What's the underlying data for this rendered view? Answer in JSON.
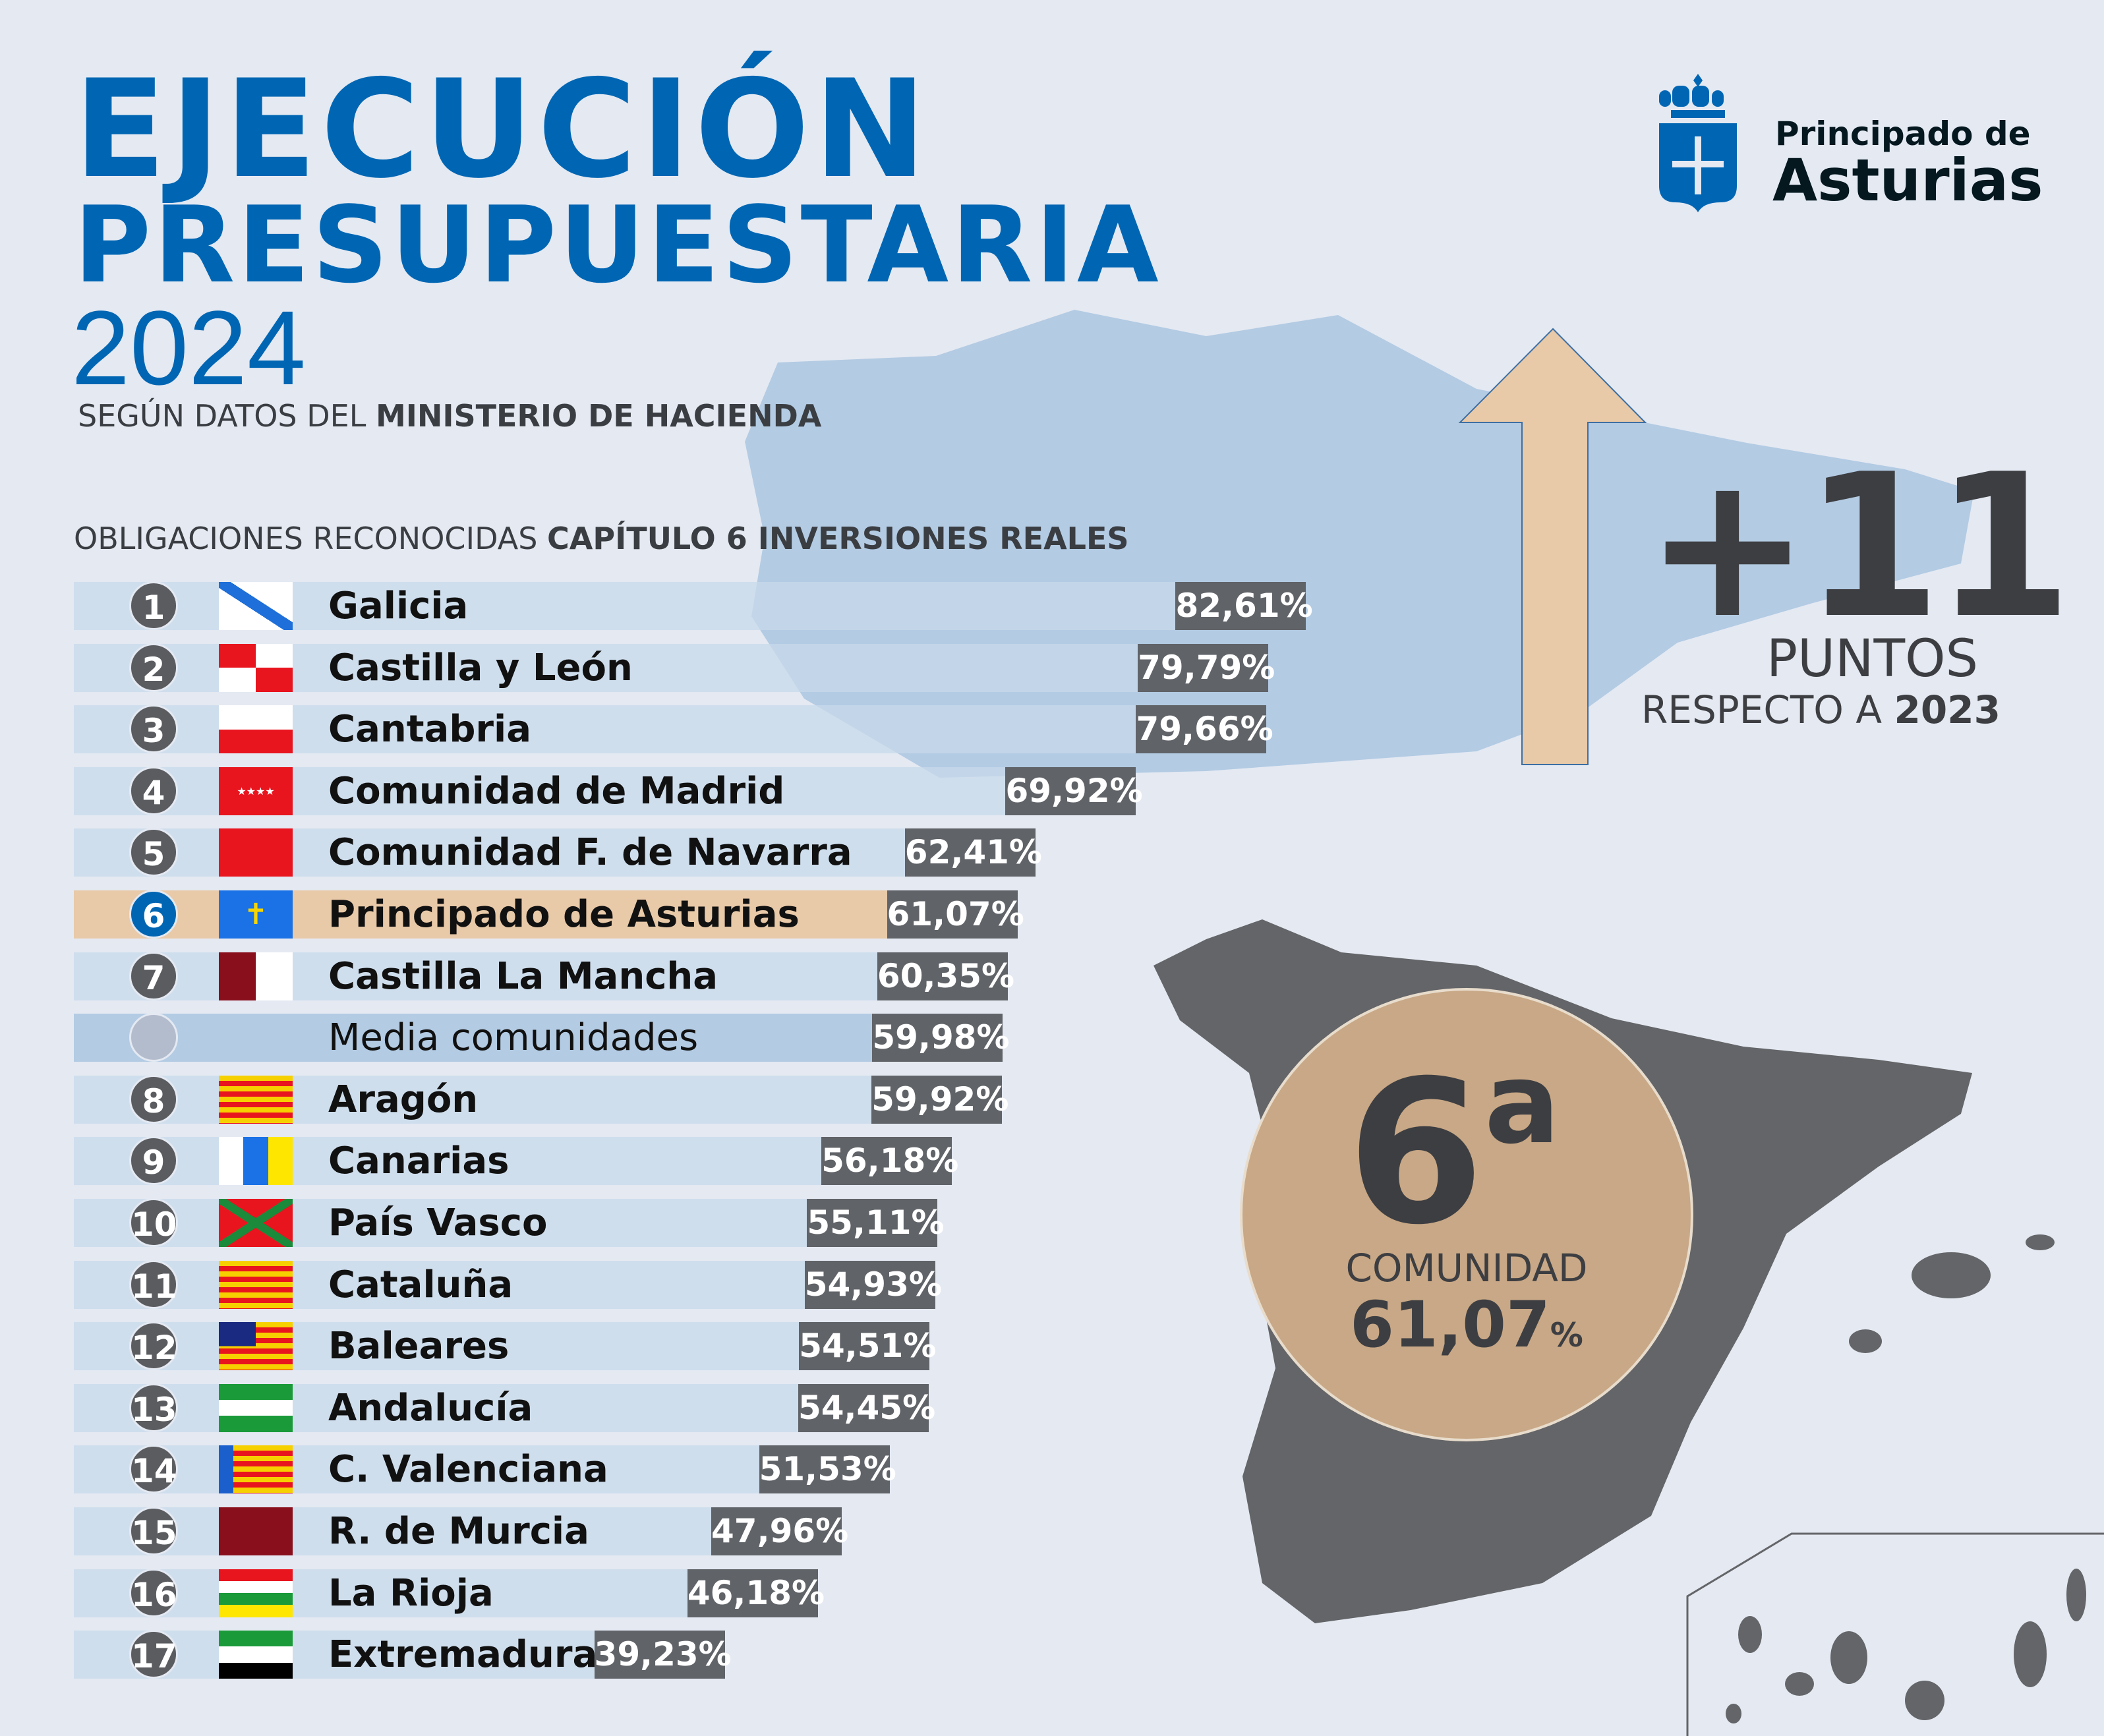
{
  "title": {
    "line1": "EJECUCIÓN",
    "line2": "PRESUPUESTARIA",
    "year": "2024"
  },
  "subtitle": {
    "prefix": "SEGÚN DATOS DEL ",
    "bold": "MINISTERIO DE HACIENDA"
  },
  "section": {
    "prefix": "OBLIGACIONES RECONOCIDAS ",
    "bold": "CAPÍTULO 6 INVERSIONES REALES"
  },
  "logo": {
    "line1": "Principado de",
    "line2": "Asturias"
  },
  "highlight": {
    "delta": "+11",
    "unit": "PUNTOS",
    "respect": "RESPECTO A ",
    "year": "2023"
  },
  "ranking_badge": {
    "position": "6",
    "ordinal": "a",
    "label": "COMUNIDAD",
    "value": "61,07",
    "pct": "%"
  },
  "colors": {
    "brand": "#0066b3",
    "highlight": "#e8c9a8",
    "value_box": "#606368"
  },
  "chart_data": {
    "type": "bar",
    "title": "OBLIGACIONES RECONOCIDAS CAPÍTULO 6 INVERSIONES REALES",
    "unit": "%",
    "rows": [
      {
        "rank": "1",
        "name": "Galicia",
        "label": "82,61%",
        "value": 82.61,
        "flag": "galicia"
      },
      {
        "rank": "2",
        "name": "Castilla y León",
        "label": "79,79%",
        "value": 79.79,
        "flag": "cyl"
      },
      {
        "rank": "3",
        "name": "Cantabria",
        "label": "79,66%",
        "value": 79.66,
        "flag": "cantabria"
      },
      {
        "rank": "4",
        "name": "Comunidad de Madrid",
        "label": "69,92%",
        "value": 69.92,
        "flag": "madrid"
      },
      {
        "rank": "5",
        "name": "Comunidad F. de Navarra",
        "label": "62,41%",
        "value": 62.41,
        "flag": "navarra"
      },
      {
        "rank": "6",
        "name": "Principado de Asturias",
        "label": "61,07%",
        "value": 61.07,
        "flag": "asturias",
        "highlight": true
      },
      {
        "rank": "7",
        "name": "Castilla La Mancha",
        "label": "60,35%",
        "value": 60.35,
        "flag": "clm"
      },
      {
        "rank": "",
        "name": "Media comunidades",
        "label": "59,98%",
        "value": 59.98,
        "flag": "",
        "average": true
      },
      {
        "rank": "8",
        "name": "Aragón",
        "label": "59,92%",
        "value": 59.92,
        "flag": "aragon"
      },
      {
        "rank": "9",
        "name": "Canarias",
        "label": "56,18%",
        "value": 56.18,
        "flag": "canarias"
      },
      {
        "rank": "10",
        "name": "País Vasco",
        "label": "55,11%",
        "value": 55.11,
        "flag": "pv"
      },
      {
        "rank": "11",
        "name": "Cataluña",
        "label": "54,93%",
        "value": 54.93,
        "flag": "cataluna"
      },
      {
        "rank": "12",
        "name": "Baleares",
        "label": "54,51%",
        "value": 54.51,
        "flag": "baleares"
      },
      {
        "rank": "13",
        "name": "Andalucía",
        "label": "54,45%",
        "value": 54.45,
        "flag": "andalucia"
      },
      {
        "rank": "14",
        "name": "C. Valenciana",
        "label": "51,53%",
        "value": 51.53,
        "flag": "valencia"
      },
      {
        "rank": "15",
        "name": "R. de Murcia",
        "label": "47,96%",
        "value": 47.96,
        "flag": "murcia"
      },
      {
        "rank": "16",
        "name": "La Rioja",
        "label": "46,18%",
        "value": 46.18,
        "flag": "rioja"
      },
      {
        "rank": "17",
        "name": "Extremadura",
        "label": "39,23%",
        "value": 39.23,
        "flag": "extremadura"
      }
    ]
  }
}
